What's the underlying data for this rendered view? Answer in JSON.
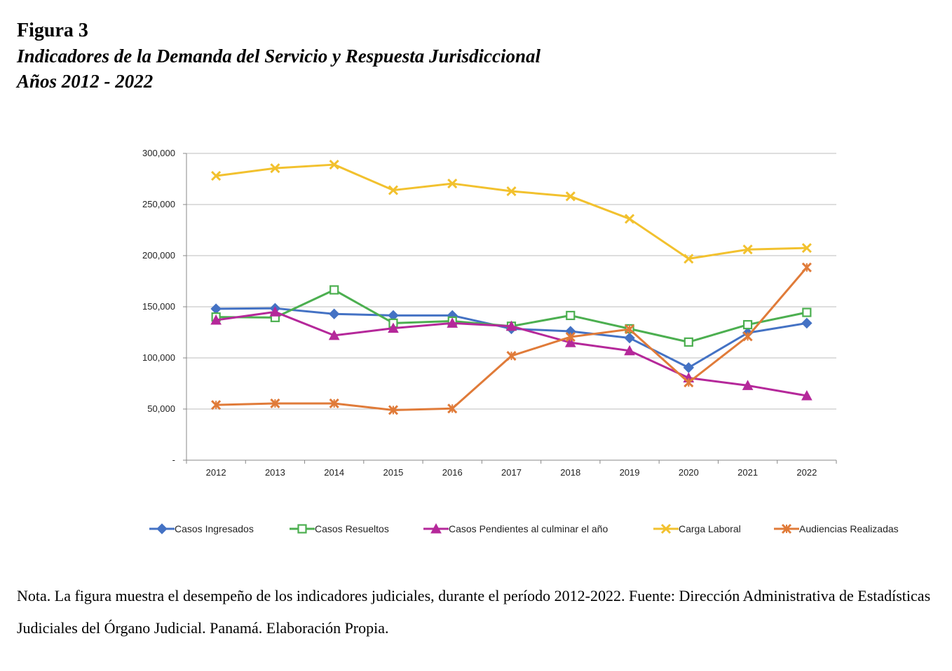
{
  "figure": {
    "label": "Figura 3",
    "title": "Indicadores de la Demanda del Servicio y Respuesta Jurisdiccional",
    "years": "Años 2012 - 2022"
  },
  "note": "Nota. La figura muestra el desempeño de los indicadores judiciales, durante el período 2012-2022. Fuente: Dirección Administrativa de Estadísticas Judiciales del Órgano Judicial. Panamá. Elaboración Propia.",
  "chart_data": {
    "type": "line",
    "title": "",
    "xlabel": "",
    "ylabel": "",
    "ylim": [
      0,
      300000
    ],
    "yticks": [
      0,
      50000,
      100000,
      150000,
      200000,
      250000,
      300000
    ],
    "ytick_labels": [
      "-",
      "50,000",
      "100,000",
      "150,000",
      "200,000",
      "250,000",
      "300,000"
    ],
    "grid": true,
    "legend_position": "bottom",
    "categories": [
      "2012",
      "2013",
      "2014",
      "2015",
      "2016",
      "2017",
      "2018",
      "2019",
      "2020",
      "2021",
      "2022"
    ],
    "series": [
      {
        "name": "Casos Ingresados",
        "color": "#4472C4",
        "marker": "diamond",
        "values": [
          148000,
          148500,
          143000,
          141500,
          141500,
          128500,
          126000,
          119500,
          90500,
          124500,
          134000
        ]
      },
      {
        "name": "Casos Resueltos",
        "color": "#4CAF50",
        "marker": "square-open",
        "values": [
          140000,
          139500,
          166500,
          134000,
          136000,
          131000,
          141500,
          128500,
          115500,
          132500,
          144500
        ]
      },
      {
        "name": "Casos Pendientes al culminar el año",
        "color": "#B5289A",
        "marker": "triangle",
        "values": [
          137000,
          145000,
          122000,
          129000,
          134000,
          131000,
          115000,
          107000,
          80500,
          73000,
          63000
        ]
      },
      {
        "name": "Carga Laboral",
        "color": "#F2C12E",
        "marker": "x",
        "values": [
          278000,
          285500,
          289000,
          264000,
          270500,
          263000,
          258000,
          236000,
          197000,
          206000,
          207500
        ]
      },
      {
        "name": "Audiencias Realizadas",
        "color": "#E07B39",
        "marker": "star",
        "values": [
          54000,
          55500,
          55500,
          49000,
          50500,
          102000,
          120500,
          128000,
          76000,
          121000,
          188500
        ]
      }
    ]
  }
}
